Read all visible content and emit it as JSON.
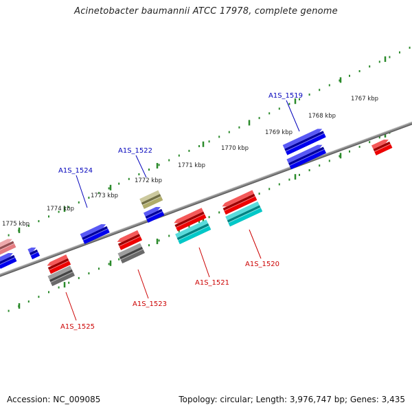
{
  "title": "Acinetobacter baumannii ATCC 17978, complete genome",
  "footer": {
    "accession": "Accession: NC_009085",
    "summary": "Topology: circular; Length: 3,976,747 bp; Genes: 3,435"
  },
  "colors": {
    "backbone": "#8a8a8a",
    "tick": "#2a8a2a",
    "forward_label": "#0000bb",
    "reverse_label": "#cc0000",
    "blue": "#0000ee",
    "red": "#ee0000",
    "cyan": "#00c8c8",
    "gray": "#6a6a6a",
    "olive": "#b0ac6a",
    "pink": "#e57b80"
  },
  "ticks": [
    {
      "label": "1767 kbp"
    },
    {
      "label": "1768 kbp"
    },
    {
      "label": "1769 kbp"
    },
    {
      "label": "1770 kbp"
    },
    {
      "label": "1771 kbp"
    },
    {
      "label": "1772 kbp"
    },
    {
      "label": "1773 kbp"
    },
    {
      "label": "1774 kbp"
    },
    {
      "label": "1775 kbp"
    }
  ],
  "gene_labels": [
    {
      "id": "A1S_1519",
      "text": "A1S_1519",
      "strand": "forward"
    },
    {
      "id": "A1S_1522",
      "text": "A1S_1522",
      "strand": "forward"
    },
    {
      "id": "A1S_1524",
      "text": "A1S_1524",
      "strand": "forward"
    },
    {
      "id": "A1S_1520",
      "text": "A1S_1520",
      "strand": "reverse"
    },
    {
      "id": "A1S_1521",
      "text": "A1S_1521",
      "strand": "reverse"
    },
    {
      "id": "A1S_1523",
      "text": "A1S_1523",
      "strand": "reverse"
    },
    {
      "id": "A1S_1525",
      "text": "A1S_1525",
      "strand": "reverse"
    }
  ]
}
